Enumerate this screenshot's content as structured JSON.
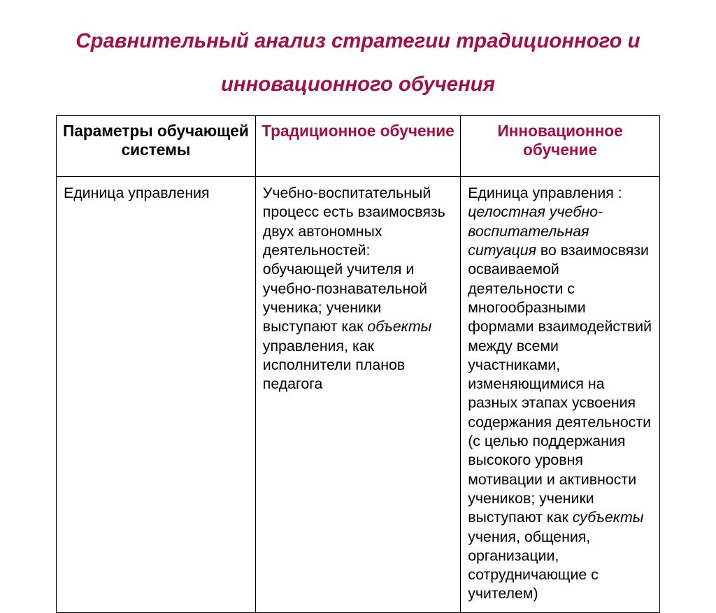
{
  "colors": {
    "title": "#a01144",
    "header_accent": "#a01144",
    "header_plain": "#000000",
    "body_text": "#000000",
    "border": "#000000",
    "background": "#ffffff"
  },
  "fonts": {
    "base_family": "Arial",
    "title_size_pt": 22,
    "header_size_pt": 17,
    "body_size_pt": 16
  },
  "title_html": "Сравнительный анализ стратегии традиционного и<br>инновационного обучения",
  "table": {
    "columns": [
      {
        "label": "Параметры обучающей системы",
        "accent": false
      },
      {
        "label": "Традиционное обучение",
        "accent": true
      },
      {
        "label": "Инновационное   обучение",
        "accent": true
      }
    ],
    "rows": [
      {
        "param": "Единица управления",
        "traditional_html": "Учебно-воспитательный процесс есть взаимосвязь двух автономных деятельностей: обучающей учителя и учебно-познавательной ученика; ученики выступают как <span class=\"i\">объекты</span> управления, как исполнители планов педагога",
        "innovative_html": "Единица управления : <span class=\"i\">целостная учебно-воспитательная ситуация</span> во взаимосвязи осваиваемой деятельности с многообразными формами взаимодействий между всеми участниками, изменяющимися на разных этапах усвоения содержания деятельности (с целью поддержания высокого уровня мотивации и активности учеников; ученики выступают как <span class=\"i\">субъекты</span> учения, общения, организации, сотрудничающие с учителем)"
      }
    ]
  }
}
